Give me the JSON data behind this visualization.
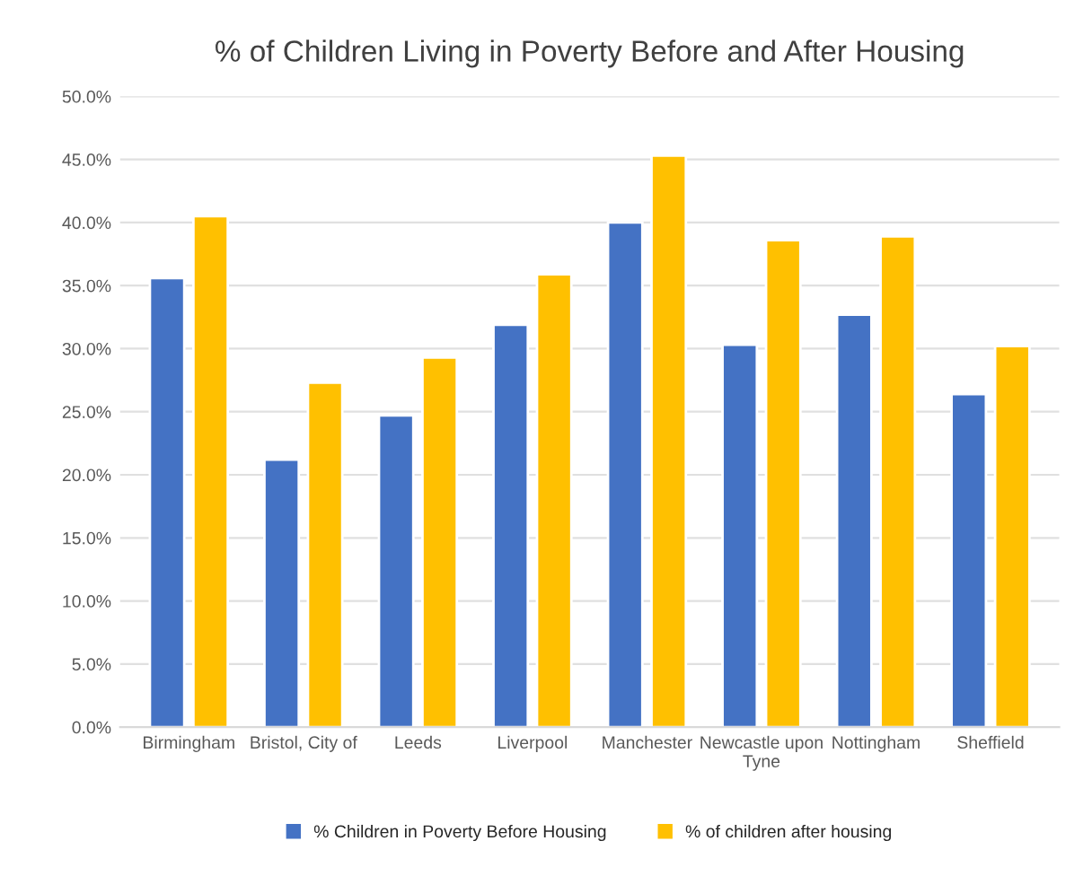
{
  "chart_data": {
    "type": "bar",
    "title": "% of Children Living in Poverty Before and After Housing",
    "categories": [
      "Birmingham",
      "Bristol, City of",
      "Leeds",
      "Liverpool",
      "Manchester",
      "Newcastle upon\nTyne",
      "Nottingham",
      "Sheffield"
    ],
    "series": [
      {
        "name": "% Children in Poverty Before Housing",
        "color": "#4472c4",
        "values": [
          35.6,
          21.2,
          24.7,
          31.9,
          40.0,
          30.3,
          32.7,
          26.4
        ]
      },
      {
        "name": "% of children after housing",
        "color": "#ffc000",
        "values": [
          40.5,
          27.3,
          29.3,
          35.9,
          45.3,
          38.6,
          38.9,
          30.2
        ]
      }
    ],
    "ylim": [
      0,
      50
    ],
    "yticks": [
      {
        "value": 0,
        "label": "0.0%"
      },
      {
        "value": 5,
        "label": "5.0%"
      },
      {
        "value": 10,
        "label": "10.0%"
      },
      {
        "value": 15,
        "label": "15.0%"
      },
      {
        "value": 20,
        "label": "20.0%"
      },
      {
        "value": 25,
        "label": "25.0%"
      },
      {
        "value": 30,
        "label": "30.0%"
      },
      {
        "value": 35,
        "label": "35.0%"
      },
      {
        "value": 40,
        "label": "40.0%"
      },
      {
        "value": 45,
        "label": "45.0%"
      },
      {
        "value": 50,
        "label": "50.0%"
      }
    ],
    "grid": "y",
    "legend": "bottom"
  }
}
